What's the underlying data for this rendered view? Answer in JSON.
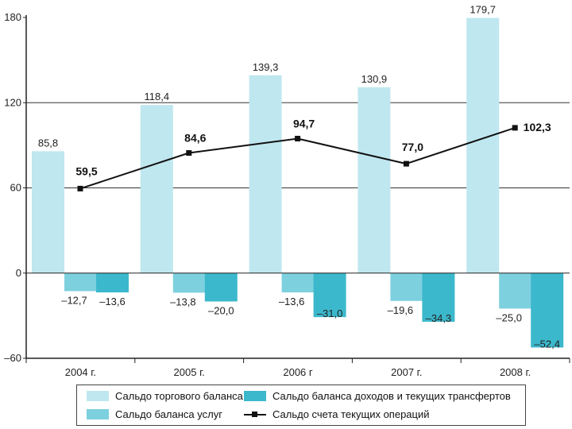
{
  "chart_data": {
    "type": "bar+line",
    "title": "",
    "xlabel": "",
    "ylabel": "",
    "ylim": [
      -60,
      180
    ],
    "yticks": [
      -60,
      0,
      60,
      120,
      180
    ],
    "categories": [
      "2004 г.",
      "2005 г.",
      "2006 г",
      "2007 г.",
      "2008 г."
    ],
    "series": [
      {
        "name": "Сальдо торгового баланса",
        "kind": "bar",
        "color": "#bfe7ef",
        "values": [
          85.8,
          118.4,
          139.3,
          130.9,
          179.7
        ],
        "labels": [
          "85,8",
          "118,4",
          "139,3",
          "130,9",
          "179,7"
        ]
      },
      {
        "name": "Сальдо баланса услуг",
        "kind": "bar",
        "color": "#7dd0de",
        "values": [
          -12.7,
          -13.8,
          -13.6,
          -19.6,
          -25.0
        ],
        "labels": [
          "–12,7",
          "–13,8",
          "–13,6",
          "–19,6",
          "–25,0"
        ]
      },
      {
        "name": "Сальдо баланса доходов и текущих трансфертов",
        "kind": "bar",
        "color": "#3cb8cc",
        "values": [
          -13.6,
          -20.0,
          -31.0,
          -34.3,
          -52.4
        ],
        "labels": [
          "–13,6",
          "–20,0",
          "–31,0",
          "–34,3",
          "–52,4"
        ]
      },
      {
        "name": "Сальдо счета текущих операций",
        "kind": "line",
        "color": "#111111",
        "values": [
          59.5,
          84.6,
          94.7,
          77.0,
          102.3
        ],
        "labels": [
          "59,5",
          "84,6",
          "94,7",
          "77,0",
          "102,3"
        ]
      }
    ],
    "gridlines": [
      120,
      60
    ],
    "legend_position": "bottom"
  },
  "legend": {
    "items": [
      {
        "label": "Сальдо торгового баланса",
        "color": "#bfe7ef",
        "kind": "bar"
      },
      {
        "label": "Сальдо баланса доходов и текущих трансфертов",
        "color": "#3cb8cc",
        "kind": "bar"
      },
      {
        "label": "Сальдо баланса услуг",
        "color": "#7dd0de",
        "kind": "bar"
      },
      {
        "label": "Сальдо счета текущих операций",
        "color": "#111111",
        "kind": "line"
      }
    ]
  }
}
